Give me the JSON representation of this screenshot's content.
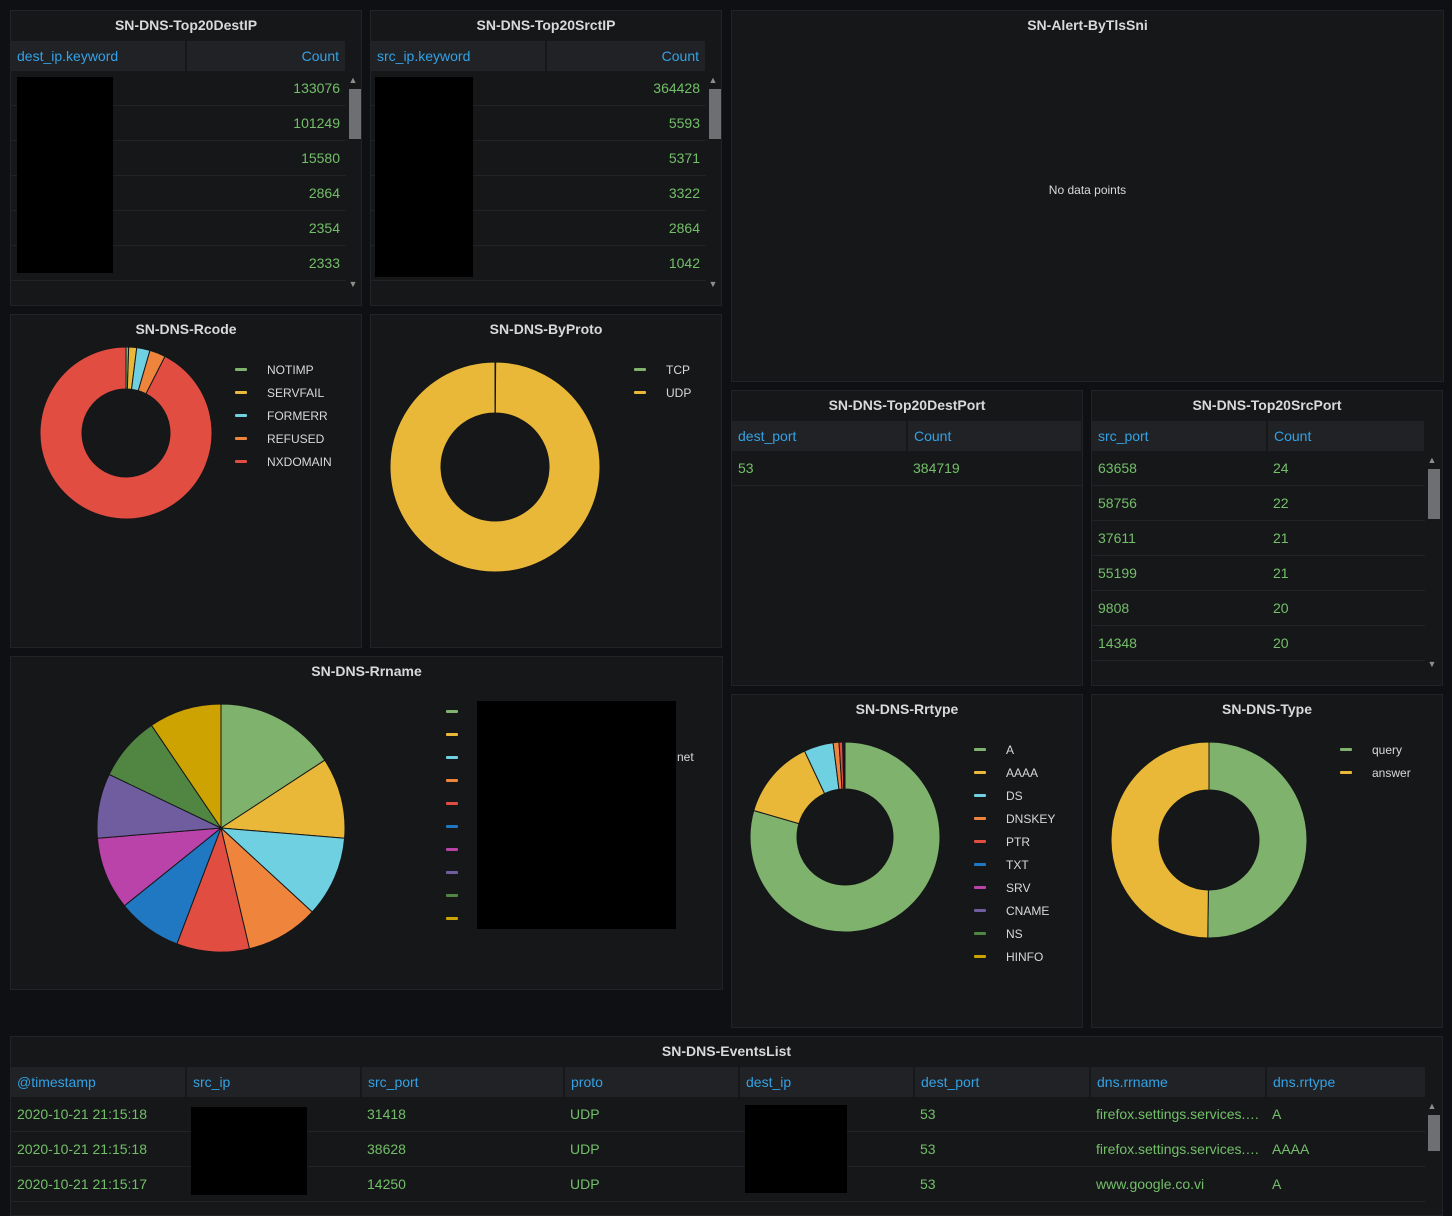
{
  "top_dest_ip": {
    "title": "SN-DNS-Top20DestIP",
    "columns": [
      "dest_ip.keyword",
      "Count"
    ],
    "counts": [
      "133076",
      "101249",
      "15580",
      "2864",
      "2354",
      "2333"
    ]
  },
  "top_src_ip": {
    "title": "SN-DNS-Top20SrctIP",
    "columns": [
      "src_ip.keyword",
      "Count"
    ],
    "counts": [
      "364428",
      "5593",
      "5371",
      "3322",
      "2864",
      "1042"
    ]
  },
  "alert_tls": {
    "title": "SN-Alert-ByTlsSni",
    "empty_text": "No data points"
  },
  "rcode": {
    "title": "SN-DNS-Rcode",
    "legend": [
      "NOTIMP",
      "SERVFAIL",
      "FORMERR",
      "REFUSED",
      "NXDOMAIN"
    ]
  },
  "byproto": {
    "title": "SN-DNS-ByProto",
    "legend": [
      "TCP",
      "UDP"
    ]
  },
  "top_dest_port": {
    "title": "SN-DNS-Top20DestPort",
    "columns": [
      "dest_port",
      "Count"
    ],
    "rows": [
      [
        "53",
        "384719"
      ]
    ]
  },
  "top_src_port": {
    "title": "SN-DNS-Top20SrcPort",
    "columns": [
      "src_port",
      "Count"
    ],
    "rows": [
      [
        "63658",
        "24"
      ],
      [
        "58756",
        "22"
      ],
      [
        "37611",
        "21"
      ],
      [
        "55199",
        "21"
      ],
      [
        "9808",
        "20"
      ],
      [
        "14348",
        "20"
      ]
    ]
  },
  "rrname": {
    "title": "SN-DNS-Rrname",
    "legend_fragment": "net"
  },
  "rrtype": {
    "title": "SN-DNS-Rrtype",
    "legend": [
      "A",
      "AAAA",
      "DS",
      "DNSKEY",
      "PTR",
      "TXT",
      "SRV",
      "CNAME",
      "NS",
      "HINFO"
    ]
  },
  "dns_type": {
    "title": "SN-DNS-Type",
    "legend": [
      "query",
      "answer"
    ]
  },
  "events": {
    "title": "SN-DNS-EventsList",
    "columns": [
      "@timestamp",
      "src_ip",
      "src_port",
      "proto",
      "dest_ip",
      "dest_port",
      "dns.rrname",
      "dns.rrtype"
    ],
    "rows": [
      [
        "2020-10-21 21:15:18",
        "",
        "31418",
        "UDP",
        "",
        "53",
        "firefox.settings.services.mozilla.com",
        "A"
      ],
      [
        "2020-10-21 21:15:18",
        "",
        "38628",
        "UDP",
        "",
        "53",
        "firefox.settings.services.mozilla.com",
        "AAAA"
      ],
      [
        "2020-10-21 21:15:17",
        "",
        "14250",
        "UDP",
        "",
        "53",
        "www.google.co.vi",
        "A"
      ]
    ]
  },
  "colors": {
    "green": "#7eb26d",
    "yellow": "#eab839",
    "cyan": "#6ed0e0",
    "orange": "#ef843c",
    "red": "#e24d42",
    "blue": "#1f78c1",
    "pink": "#ba43a9",
    "purple": "#705da0",
    "dark_green": "#508642",
    "dark_yellow": "#cca300"
  },
  "chart_data": [
    {
      "type": "pie",
      "title": "SN-DNS-Rcode",
      "donut": true,
      "categories": [
        "NOTIMP",
        "SERVFAIL",
        "FORMERR",
        "REFUSED",
        "NXDOMAIN"
      ],
      "values": [
        0.5,
        1.5,
        2.5,
        3.0,
        92.5
      ]
    },
    {
      "type": "pie",
      "title": "SN-DNS-ByProto",
      "donut": true,
      "categories": [
        "TCP",
        "UDP"
      ],
      "values": [
        0.1,
        99.9
      ]
    },
    {
      "type": "pie",
      "title": "SN-DNS-Rrname",
      "donut": false,
      "categories": [
        "",
        "",
        "",
        "",
        "",
        "",
        "",
        "",
        "",
        ""
      ],
      "values": [
        15,
        10,
        10,
        9,
        9,
        8,
        9,
        8,
        8,
        9
      ]
    },
    {
      "type": "pie",
      "title": "SN-DNS-Rrtype",
      "donut": true,
      "categories": [
        "A",
        "AAAA",
        "DS",
        "DNSKEY",
        "PTR",
        "TXT",
        "SRV",
        "CNAME",
        "NS",
        "HINFO"
      ],
      "values": [
        79.5,
        13.5,
        5.0,
        1.0,
        0.6,
        0.2,
        0.1,
        0.05,
        0.03,
        0.02
      ]
    },
    {
      "type": "pie",
      "title": "SN-DNS-Type",
      "donut": true,
      "categories": [
        "query",
        "answer"
      ],
      "values": [
        50.2,
        49.8
      ]
    }
  ]
}
